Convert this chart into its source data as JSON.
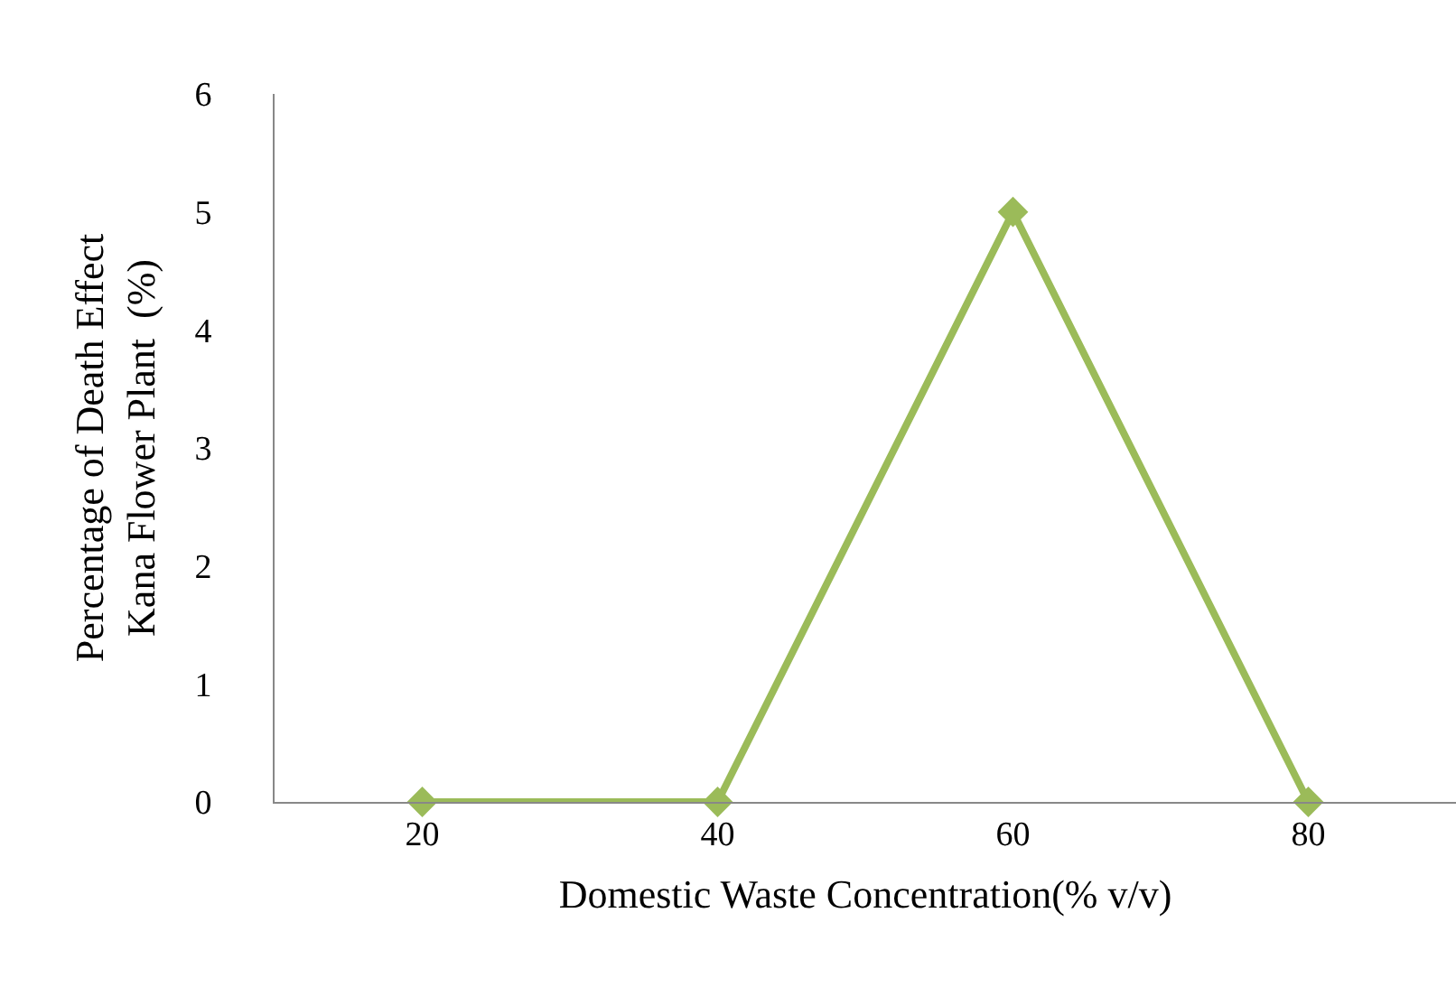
{
  "chart_data": {
    "type": "line",
    "xlabel": "Domestic Waste Concentration(% v/v)",
    "ylabel": "Percentage of Death Effect\nKana Flower Plant  (%)",
    "categories": [
      "20",
      "40",
      "60",
      "80"
    ],
    "series": [
      {
        "color": "#9bbb59",
        "values": [
          0,
          0,
          5,
          0
        ]
      }
    ],
    "ylim": [
      0,
      6
    ],
    "yticks": [
      0,
      1,
      2,
      3,
      4,
      5,
      6
    ],
    "legend": false,
    "marker": "diamond",
    "line_style": "solid"
  }
}
